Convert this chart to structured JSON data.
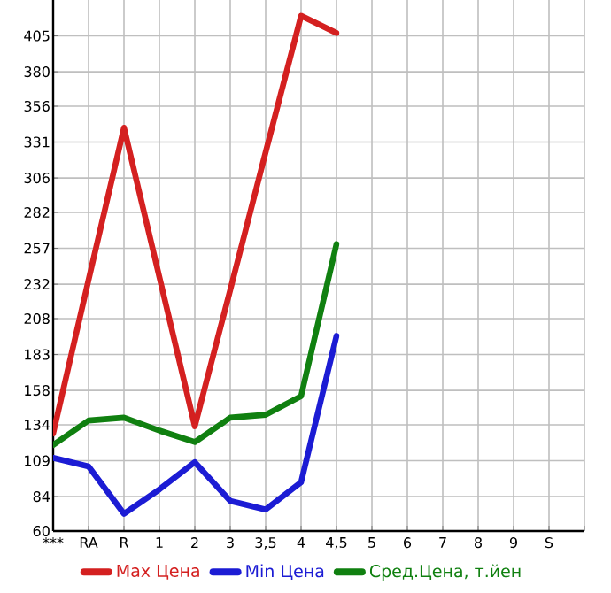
{
  "chart_data": {
    "type": "line",
    "categories": [
      "***",
      "RA",
      "R",
      "1",
      "2",
      "3",
      "3,5",
      "4",
      "4,5",
      "5",
      "6",
      "7",
      "8",
      "9",
      "S"
    ],
    "ylim": [
      60,
      430
    ],
    "yticks": [
      60,
      84,
      109,
      134,
      158,
      183,
      208,
      232,
      257,
      282,
      306,
      331,
      356,
      380,
      405
    ],
    "grid": true,
    "legend": "bottom",
    "marker": "none",
    "line_style": "solid",
    "series": [
      {
        "name": "Max Цена",
        "color": "#d42020",
        "values": [
          128,
          235,
          341,
          237,
          133,
          228,
          324,
          419,
          407,
          null,
          null,
          null,
          null,
          null,
          null
        ]
      },
      {
        "name": "Min Цена",
        "color": "#1c1cd4",
        "values": [
          111,
          105,
          72,
          89,
          108,
          81,
          75,
          94,
          196,
          null,
          null,
          null,
          null,
          null,
          null
        ]
      },
      {
        "name": "Сред.Цена, т.йен",
        "color": "#108010",
        "values": [
          120,
          137,
          139,
          130,
          122,
          139,
          141,
          154,
          260,
          null,
          null,
          null,
          null,
          null,
          null
        ]
      }
    ]
  }
}
